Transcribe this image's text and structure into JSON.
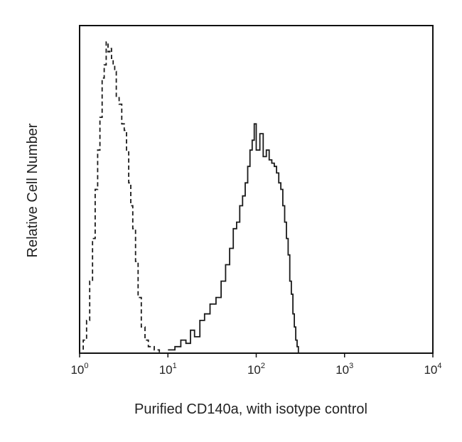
{
  "chart_data": {
    "type": "line",
    "title": "",
    "xlabel": "Purified CD140a, with isotype control",
    "ylabel": "Relative Cell Number",
    "x_scale": "log",
    "xlim": [
      1,
      10000
    ],
    "ylim": [
      0,
      100
    ],
    "x_ticks": [
      {
        "base": "10",
        "exp": "0",
        "value": 1
      },
      {
        "base": "10",
        "exp": "1",
        "value": 10
      },
      {
        "base": "10",
        "exp": "2",
        "value": 100
      },
      {
        "base": "10",
        "exp": "3",
        "value": 1000
      },
      {
        "base": "10",
        "exp": "4",
        "value": 10000
      }
    ],
    "grid": false,
    "legend": "none",
    "series": [
      {
        "style": "dashed",
        "color": "#1a1a1a",
        "x": [
          1.0,
          1.1,
          1.2,
          1.3,
          1.4,
          1.5,
          1.6,
          1.7,
          1.8,
          1.9,
          2.0,
          2.1,
          2.2,
          2.3,
          2.4,
          2.5,
          2.6,
          2.8,
          3.0,
          3.2,
          3.4,
          3.6,
          3.8,
          4.0,
          4.3,
          4.6,
          5.0,
          5.5,
          6.0,
          7.0,
          8.0
        ],
        "y": [
          0,
          4,
          10,
          22,
          35,
          50,
          62,
          72,
          84,
          88,
          95,
          92,
          93,
          90,
          88,
          86,
          78,
          76,
          70,
          68,
          62,
          52,
          45,
          38,
          28,
          17,
          8,
          4,
          2,
          1,
          0
        ]
      },
      {
        "style": "solid",
        "color": "#1a1a1a",
        "x": [
          10,
          12,
          14,
          16,
          18,
          20,
          23,
          26,
          30,
          35,
          40,
          45,
          50,
          55,
          60,
          65,
          70,
          75,
          80,
          85,
          90,
          95,
          100,
          110,
          120,
          130,
          140,
          150,
          160,
          170,
          180,
          190,
          200,
          210,
          220,
          230,
          240,
          250,
          260,
          270,
          280,
          290,
          300
        ],
        "y": [
          1,
          2,
          4,
          3,
          7,
          5,
          10,
          12,
          15,
          17,
          22,
          27,
          32,
          38,
          40,
          45,
          48,
          52,
          57,
          62,
          65,
          70,
          62,
          67,
          60,
          62,
          59,
          58,
          57,
          55,
          52,
          50,
          45,
          40,
          35,
          30,
          22,
          18,
          12,
          8,
          4,
          2,
          0
        ]
      }
    ]
  }
}
